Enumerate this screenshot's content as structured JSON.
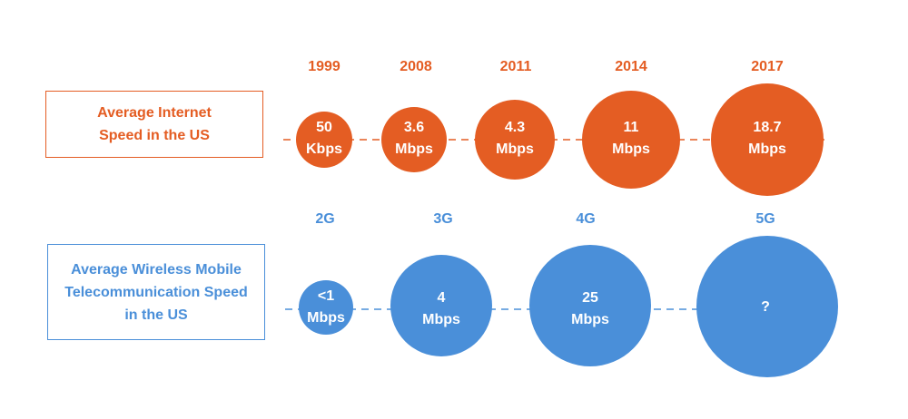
{
  "colors": {
    "internet": "#e45d23",
    "wireless": "#4a8fd9"
  },
  "internet": {
    "label": "Average Internet\nSpeed in the US",
    "items": [
      {
        "year": "1999",
        "value": "50",
        "unit": "Kbps"
      },
      {
        "year": "2008",
        "value": "3.6",
        "unit": "Mbps"
      },
      {
        "year": "2011",
        "value": "4.3",
        "unit": "Mbps"
      },
      {
        "year": "2014",
        "value": "11",
        "unit": "Mbps"
      },
      {
        "year": "2017",
        "value": "18.7",
        "unit": "Mbps"
      }
    ]
  },
  "wireless": {
    "label": "Average Wireless Mobile\nTelecommunication Speed\nin the US",
    "items": [
      {
        "gen": "2G",
        "value": "<1",
        "unit": "Mbps"
      },
      {
        "gen": "3G",
        "value": "4",
        "unit": "Mbps"
      },
      {
        "gen": "4G",
        "value": "25",
        "unit": "Mbps"
      },
      {
        "gen": "5G",
        "value": "?",
        "unit": ""
      }
    ]
  }
}
